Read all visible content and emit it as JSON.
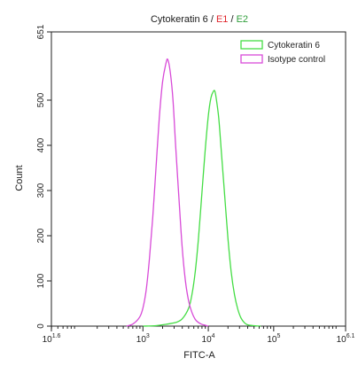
{
  "chart_data": {
    "type": "line",
    "title_parts": [
      {
        "text": "Cytokeratin 6 / ",
        "color": "#1a1a1a"
      },
      {
        "text": "E1",
        "color": "#e0242b"
      },
      {
        "text": " / ",
        "color": "#1a1a1a"
      },
      {
        "text": "E2",
        "color": "#2e9e3a"
      }
    ],
    "xlabel": "FITC-A",
    "ylabel": "Count",
    "x_scale": "log10",
    "xlim": [
      1.6,
      6.1
    ],
    "ylim": [
      0,
      651
    ],
    "x_ticks": [
      {
        "value": 1.6,
        "base": "10",
        "exp": "1.6"
      },
      {
        "value": 3,
        "base": "10",
        "exp": "3"
      },
      {
        "value": 4,
        "base": "10",
        "exp": "4"
      },
      {
        "value": 5,
        "base": "10",
        "exp": "5"
      },
      {
        "value": 6.1,
        "base": "10",
        "exp": "6.1"
      }
    ],
    "y_ticks": [
      0,
      100,
      200,
      300,
      400,
      500,
      651
    ],
    "y_tick_labels": [
      "0",
      "100",
      "200",
      "300",
      "400",
      "500",
      "651"
    ],
    "legend_position": "top-right",
    "series": [
      {
        "name": "Cytokeratin 6",
        "color": "#44dd44",
        "x_log": [
          3.0,
          3.2,
          3.35,
          3.5,
          3.6,
          3.7,
          3.75,
          3.8,
          3.85,
          3.9,
          3.95,
          4.0,
          4.04,
          4.08,
          4.1,
          4.12,
          4.16,
          4.2,
          4.25,
          4.3,
          4.35,
          4.4,
          4.45,
          4.5,
          4.55,
          4.6,
          4.7,
          4.8
        ],
        "y": [
          0,
          1,
          4,
          8,
          16,
          40,
          70,
          120,
          195,
          290,
          385,
          465,
          505,
          520,
          520,
          505,
          460,
          385,
          290,
          195,
          120,
          70,
          38,
          18,
          8,
          3,
          1,
          0
        ]
      },
      {
        "name": "Isotype control",
        "color": "#d84ad8",
        "x_log": [
          2.75,
          2.85,
          2.95,
          3.0,
          3.05,
          3.1,
          3.15,
          3.2,
          3.25,
          3.3,
          3.35,
          3.38,
          3.42,
          3.46,
          3.5,
          3.55,
          3.6,
          3.65,
          3.7,
          3.75,
          3.8,
          3.85,
          3.9,
          3.95,
          4.0
        ],
        "y": [
          0,
          5,
          20,
          40,
          80,
          150,
          240,
          350,
          460,
          540,
          580,
          590,
          560,
          500,
          400,
          285,
          175,
          100,
          55,
          30,
          15,
          8,
          4,
          2,
          0
        ]
      }
    ]
  }
}
